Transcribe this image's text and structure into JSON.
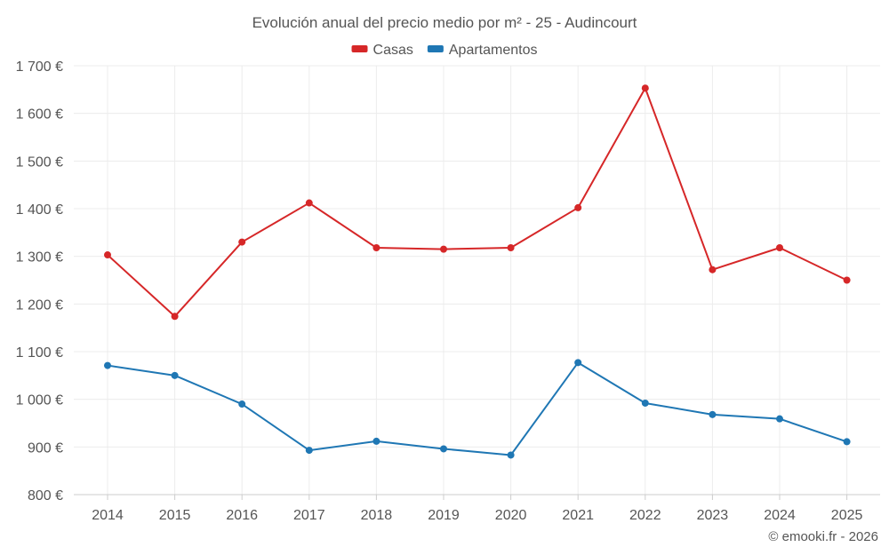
{
  "chart_data": {
    "type": "line",
    "title": "Evolución anual del precio medio por m² - 25 - Audincourt",
    "categories": [
      "2014",
      "2015",
      "2016",
      "2017",
      "2018",
      "2019",
      "2020",
      "2021",
      "2022",
      "2023",
      "2024",
      "2025"
    ],
    "series": [
      {
        "name": "Casas",
        "color": "#d62728",
        "values": [
          1303,
          1174,
          1330,
          1412,
          1318,
          1315,
          1318,
          1402,
          1653,
          1272,
          1318,
          1250
        ]
      },
      {
        "name": "Apartamentos",
        "color": "#1f77b4",
        "values": [
          1071,
          1050,
          990,
          893,
          912,
          896,
          883,
          1077,
          992,
          968,
          959,
          911
        ]
      }
    ],
    "ylim": [
      800,
      1700
    ],
    "yticks": [
      800,
      900,
      1000,
      1100,
      1200,
      1300,
      1400,
      1500,
      1600,
      1700
    ],
    "ytick_labels": [
      "800 €",
      "900 €",
      "1 000 €",
      "1 100 €",
      "1 200 €",
      "1 300 €",
      "1 400 €",
      "1 500 €",
      "1 600 €",
      "1 700 €"
    ],
    "grid": true,
    "legend": "top-center",
    "xlabel": "",
    "ylabel": ""
  },
  "credit": "© emooki.fr - 2026"
}
